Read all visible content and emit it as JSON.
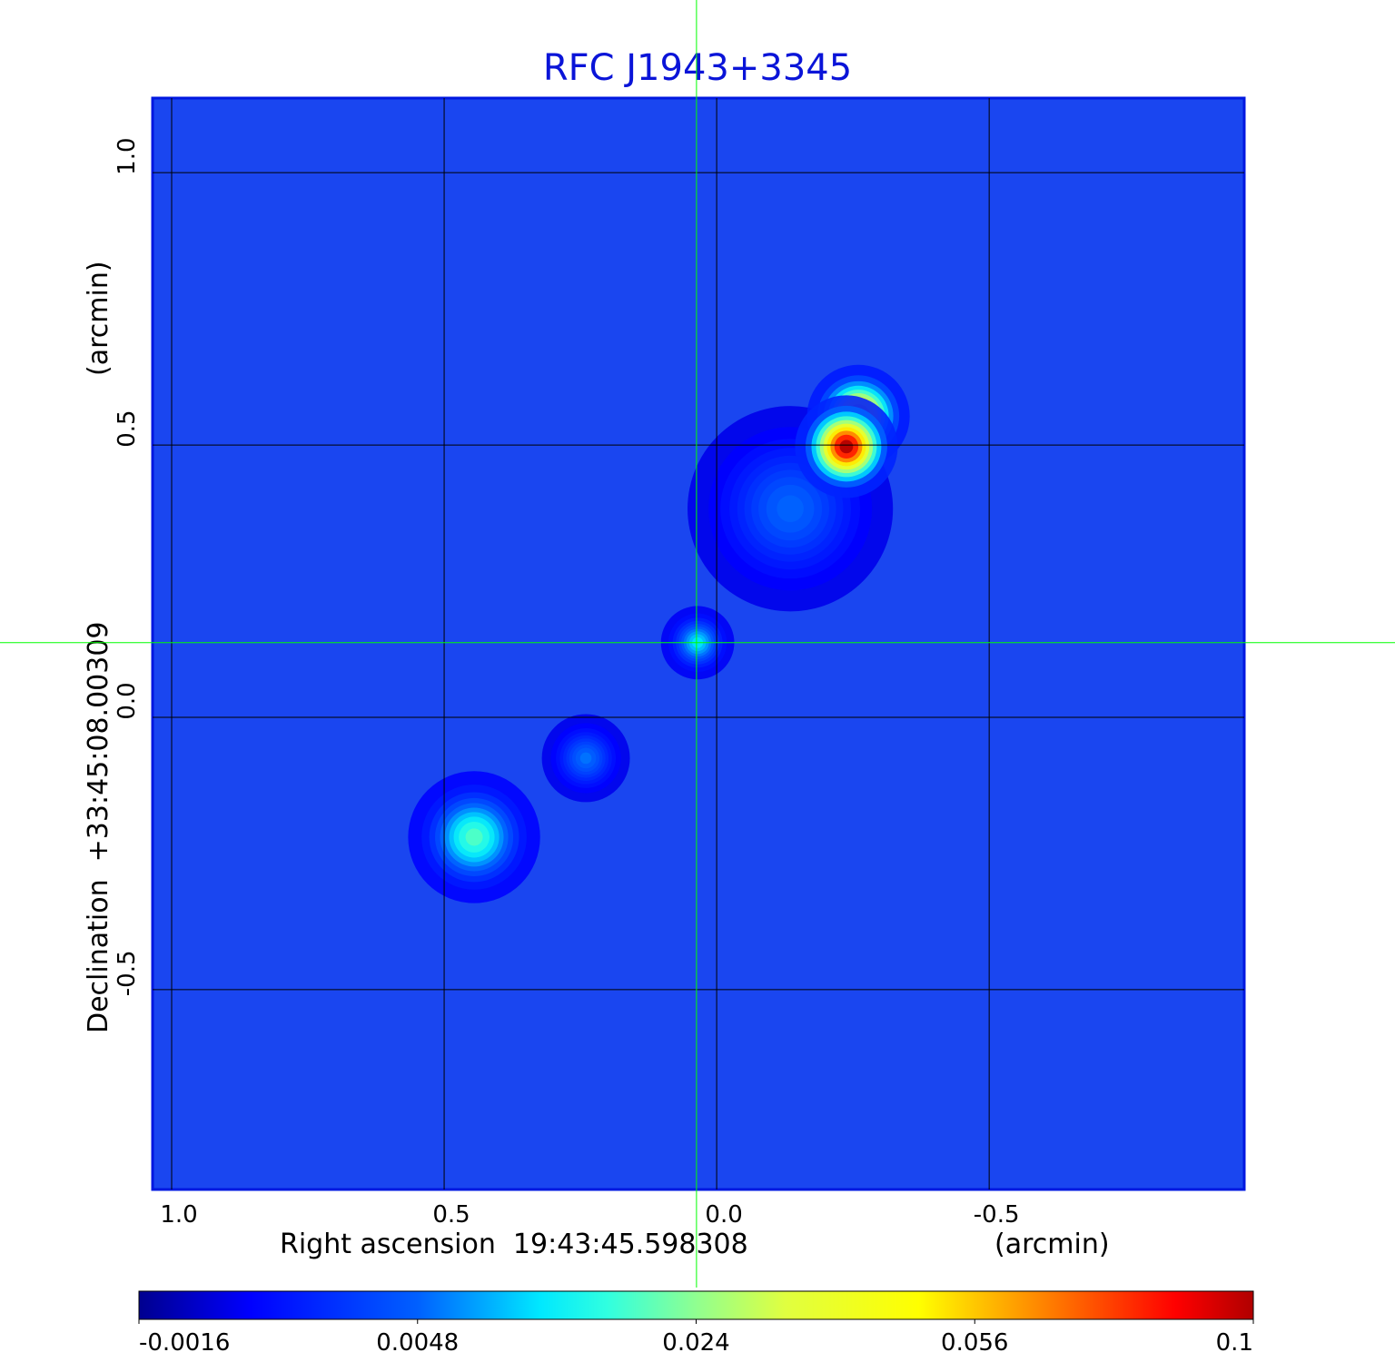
{
  "chart_data": {
    "type": "heatmap",
    "title": "RFC J1943+3345",
    "xlabel": "Right ascension  19:43:45.598308",
    "xunit": "(arcmin)",
    "ylabel": "Declination  +33:45:08.00309",
    "yunit": "(arcmin)",
    "x_ticks": [
      "1.0",
      "0.5",
      "0.0",
      "-0.5"
    ],
    "x_tick_values": [
      1.0,
      0.5,
      0.0,
      -0.5
    ],
    "y_ticks": [
      "1.0",
      "0.5",
      "0.0",
      "-0.5"
    ],
    "y_tick_values": [
      1.0,
      0.5,
      0.0,
      -0.5
    ],
    "xlim": [
      1.035,
      -0.968
    ],
    "ylim": [
      -0.867,
      1.137
    ],
    "grid": true,
    "colormap": "jet",
    "colorbar": {
      "ticks": [
        "-0.0016",
        "0.0048",
        "0.024",
        "0.056",
        "0.1"
      ],
      "tick_values": [
        -0.0016,
        0.0048,
        0.024,
        0.056,
        0.1
      ],
      "placement": "bottom"
    },
    "crosshair": {
      "x": 0.037,
      "y": 0.137,
      "color": "#00ff00"
    },
    "background_level": 0.0,
    "sources": [
      {
        "x": -0.238,
        "y": 0.497,
        "peak": 0.1,
        "sigma": 0.035
      },
      {
        "x": -0.26,
        "y": 0.553,
        "peak": 0.07,
        "sigma": 0.035
      },
      {
        "x": 0.035,
        "y": 0.137,
        "peak": 0.013,
        "sigma": 0.025
      },
      {
        "x": 0.445,
        "y": -0.22,
        "peak": 0.02,
        "sigma": 0.045
      },
      {
        "x": 0.24,
        "y": -0.075,
        "peak": 0.006,
        "sigma": 0.03
      },
      {
        "x": -0.135,
        "y": 0.383,
        "peak": 0.005,
        "sigma": 0.07
      }
    ]
  },
  "colors": {
    "title": "#0a14d8",
    "background_map": "#1a46f0",
    "grid": "#000000",
    "crosshair": "#00ff00"
  }
}
